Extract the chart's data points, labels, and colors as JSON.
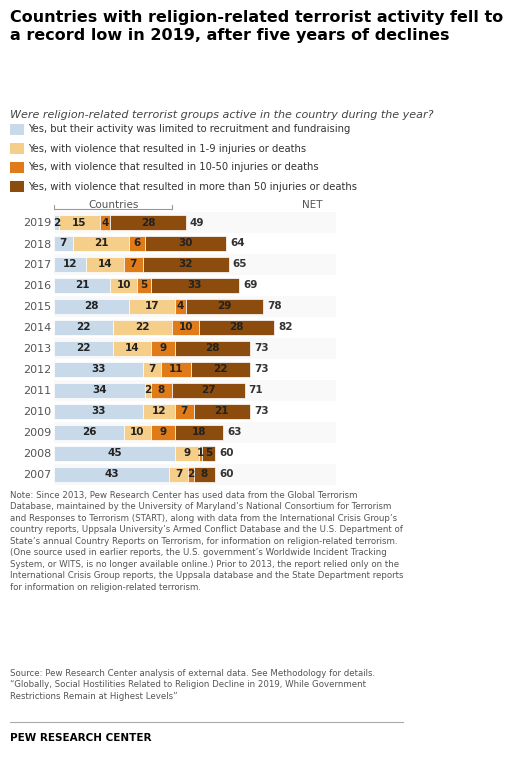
{
  "title": "Countries with religion-related terrorist activity fell to\na record low in 2019, after five years of declines",
  "subtitle": "Were religion-related terrorist groups active in the country during the year?",
  "years": [
    2019,
    2018,
    2017,
    2016,
    2015,
    2014,
    2013,
    2012,
    2011,
    2010,
    2009,
    2008,
    2007
  ],
  "data": {
    "recruitment": [
      2,
      7,
      12,
      21,
      28,
      22,
      22,
      33,
      34,
      33,
      26,
      45,
      43
    ],
    "low_violence": [
      15,
      21,
      14,
      10,
      17,
      22,
      14,
      7,
      2,
      12,
      10,
      9,
      7
    ],
    "mid_violence": [
      4,
      6,
      7,
      5,
      4,
      10,
      9,
      11,
      8,
      7,
      9,
      1,
      2
    ],
    "high_violence": [
      28,
      30,
      32,
      33,
      29,
      28,
      28,
      22,
      27,
      21,
      18,
      5,
      8
    ]
  },
  "net": [
    49,
    64,
    65,
    69,
    78,
    82,
    73,
    73,
    71,
    73,
    63,
    60,
    60
  ],
  "colors": {
    "recruitment": "#c8daea",
    "low_violence": "#f5ce8a",
    "mid_violence": "#e07b1a",
    "high_violence": "#8b4c0e"
  },
  "legend_labels": [
    "Yes, but their activity was limited to recruitment and fundraising",
    "Yes, with violence that resulted in 1-9 injuries or deaths",
    "Yes, with violence that resulted in 10-50 injuries or deaths",
    "Yes, with violence that resulted in more than 50 injuries or deaths"
  ],
  "note1": "Note: Since 2013, Pew Research Center has used data from the Global Terrorism\nDatabase, maintained by the University of Maryland’s National Consortium for Terrorism\nand Responses to Terrorism (START), along with data from the International Crisis Group’s\ncountry reports, Uppsala University’s Armed Conflict Database and the U.S. Department of\nState’s annual Country Reports on Terrorism, for information on religion-related terrorism.\n(One source used in earlier reports, the U.S. government’s Worldwide Incident Tracking\nSystem, or WITS, is no longer available online.) Prior to 2013, the report relied only on the\nInternational Crisis Group reports, the Uppsala database and the State Department reports\nfor information on religion-related terrorism.",
  "note2": "Source: Pew Research Center analysis of external data. See Methodology for details.\n“Globally, Social Hostilities Related to Religion Decline in 2019, While Government\nRestrictions Remain at Highest Levels”",
  "branding": "PEW RESEARCH CENTER",
  "xlim": 90,
  "bar_height": 0.68,
  "bar_text_fontsize": 7.5,
  "year_fontsize": 8.0,
  "net_fontsize": 7.5,
  "title_fontsize": 11.5,
  "subtitle_fontsize": 8.0,
  "legend_fontsize": 7.2,
  "note_fontsize": 6.2,
  "brand_fontsize": 7.5
}
